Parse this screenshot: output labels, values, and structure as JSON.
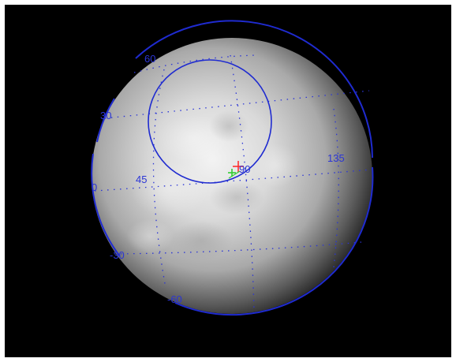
{
  "labels": {
    "lat_60_top": "60",
    "lat_30_left": "30",
    "lon_45": "45",
    "lon_90": "90",
    "lon_135": "135",
    "lat_0_left": "0",
    "lat_minus_30": "-30",
    "lat_minus_60": "-60"
  },
  "colors": {
    "background": "#000000",
    "border": "#ffffff",
    "grid_line": "#2b35d6",
    "limb_line": "#1f2bd0",
    "marker_red": "#ff3030",
    "marker_green": "#33cc33"
  },
  "markers": [
    "red-cross-marker",
    "green-cross-marker"
  ]
}
